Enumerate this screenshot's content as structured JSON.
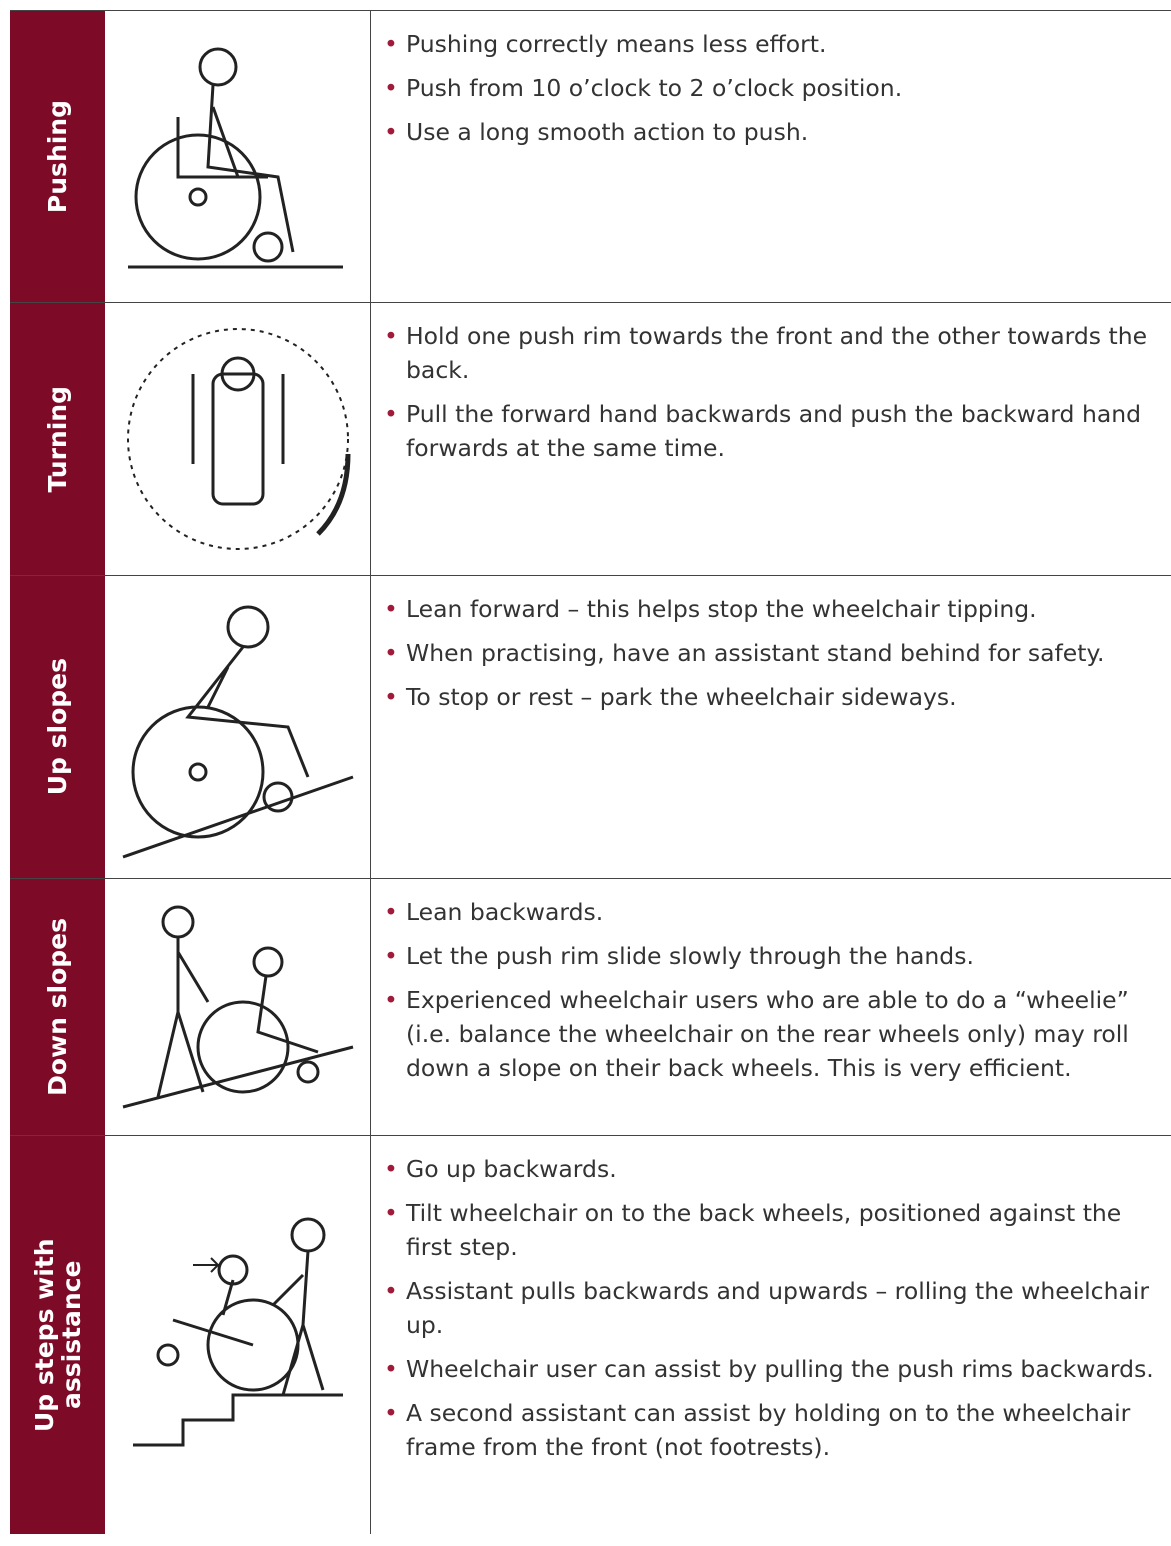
{
  "rows": [
    {
      "label": "Pushing",
      "bullets": [
        "Pushing correctly means less effort.",
        "Push from 10 o’clock to 2 o’clock position.",
        "Use a long smooth action to push."
      ]
    },
    {
      "label": "Turning",
      "bullets": [
        "Hold one push rim towards the front and the other towards the back.",
        "Pull the forward hand backwards and push the backward hand forwards at the same time."
      ]
    },
    {
      "label": "Up slopes",
      "bullets": [
        "Lean forward – this helps stop the wheelchair tipping.",
        "When practising, have an assistant stand behind for safety.",
        "To stop or rest – park the wheelchair sideways."
      ]
    },
    {
      "label": "Down slopes",
      "bullets": [
        "Lean backwards.",
        "Let the push rim slide slowly through the hands.",
        "Experienced wheelchair users who are able to do a “wheelie” (i.e. balance the wheelchair on the rear wheels only) may roll down a slope on their back wheels. This is very efficient."
      ]
    },
    {
      "label": "Up steps with assistance",
      "bullets": [
        "Go up backwards.",
        "Tilt wheelchair on to the back wheels, positioned against the first step.",
        "Assistant pulls backwards and upwards – rolling the wheelchair up.",
        "Wheelchair user can assist by pulling the push rims backwards.",
        "A second assistant can assist by holding on to the wheelchair frame from the front (not footrests)."
      ]
    }
  ]
}
